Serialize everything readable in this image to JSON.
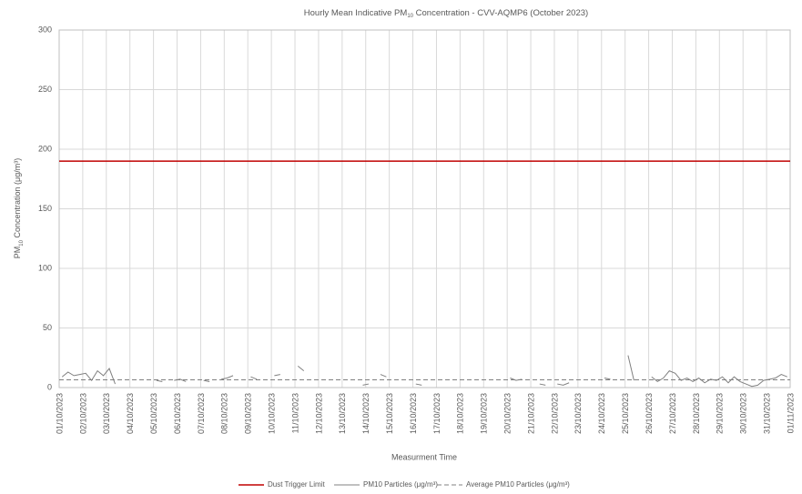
{
  "chart_data": {
    "type": "line",
    "title_parts": [
      "Hourly Mean Indicative PM",
      "10",
      " Concentration - CVV-AQMP6 (October 2023)"
    ],
    "ylabel_parts": [
      "PM",
      "10",
      " Concentration (μg/m³)"
    ],
    "xlabel": "Measurment Time",
    "xticks": [
      "01/10/2023",
      "02/10/2023",
      "03/10/2023",
      "04/10/2023",
      "05/10/2023",
      "06/10/2023",
      "07/10/2023",
      "08/10/2023",
      "09/10/2023",
      "10/10/2023",
      "11/10/2023",
      "12/10/2023",
      "13/10/2023",
      "14/10/2023",
      "15/10/2023",
      "16/10/2023",
      "17/10/2023",
      "18/10/2023",
      "19/10/2023",
      "20/10/2023",
      "21/10/2023",
      "22/10/2023",
      "23/10/2023",
      "24/10/2023",
      "25/10/2023",
      "26/10/2023",
      "27/10/2023",
      "28/10/2023",
      "29/10/2023",
      "30/10/2023",
      "31/10/2023",
      "01/11/2023"
    ],
    "ylim": [
      0,
      300
    ],
    "yticks": [
      0,
      50,
      100,
      150,
      200,
      250,
      300
    ],
    "grid": true,
    "legend": "bottom",
    "series": [
      {
        "name": "Dust Trigger Limit",
        "color": "#c00000",
        "value": 190,
        "line_style": "solid"
      },
      {
        "name": "PM10 Particles (μg/m³)",
        "color": "#808080",
        "line_style": "solid",
        "values": [
          9,
          13,
          10,
          11,
          12,
          6,
          14,
          10,
          16,
          3,
          null,
          null,
          null,
          null,
          null,
          null,
          6,
          5,
          null,
          6,
          7,
          5,
          null,
          null,
          6,
          5,
          null,
          7,
          8,
          10,
          null,
          null,
          9,
          7,
          null,
          null,
          10,
          11,
          null,
          null,
          18,
          14,
          null,
          null,
          null,
          null,
          null,
          null,
          null,
          null,
          null,
          2,
          3,
          null,
          11,
          9,
          null,
          null,
          null,
          null,
          3,
          2,
          null,
          null,
          null,
          null,
          null,
          null,
          null,
          null,
          null,
          null,
          null,
          null,
          null,
          null,
          8,
          6,
          7,
          null,
          null,
          3,
          2,
          null,
          3,
          2,
          4,
          null,
          null,
          2,
          null,
          null,
          8,
          7,
          null,
          null,
          27,
          6,
          null,
          null,
          9,
          5,
          8,
          14,
          12,
          6,
          8,
          5,
          8,
          4,
          7,
          6,
          9,
          4,
          9,
          5,
          3,
          1,
          2,
          6,
          7,
          8,
          11,
          9
        ]
      },
      {
        "name": "Average PM10 Particles (μg/m³)",
        "color": "#808080",
        "value": 6.5,
        "line_style": "dashed"
      }
    ]
  }
}
